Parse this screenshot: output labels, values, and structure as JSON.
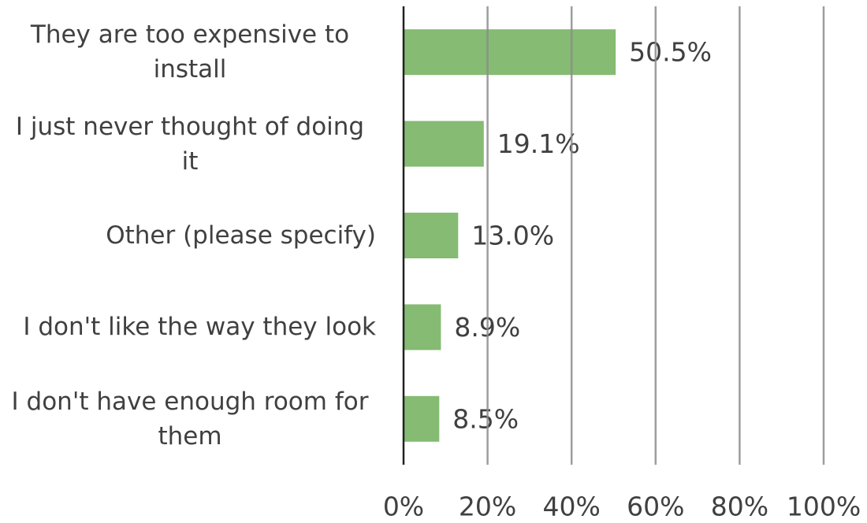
{
  "chart_data": {
    "type": "bar",
    "orientation": "horizontal",
    "categories": [
      "They are too expensive to install",
      "I just never thought of doing it",
      "Other (please specify)",
      "I don't like the way they look",
      "I don't have enough room for them"
    ],
    "values": [
      50.5,
      19.1,
      13.0,
      8.9,
      8.5
    ],
    "value_labels": [
      "50.5%",
      "19.1%",
      "13.0%",
      "8.9%",
      "8.5%"
    ],
    "color": "#85bb73",
    "xlim": [
      0,
      100
    ],
    "xticks": [
      {
        "value": 0,
        "label": "0%"
      },
      {
        "value": 20,
        "label": "20%"
      },
      {
        "value": 40,
        "label": "40%"
      },
      {
        "value": 60,
        "label": "60%"
      },
      {
        "value": 80,
        "label": "80%"
      },
      {
        "value": 100,
        "label": "100%"
      }
    ],
    "grid": true
  }
}
